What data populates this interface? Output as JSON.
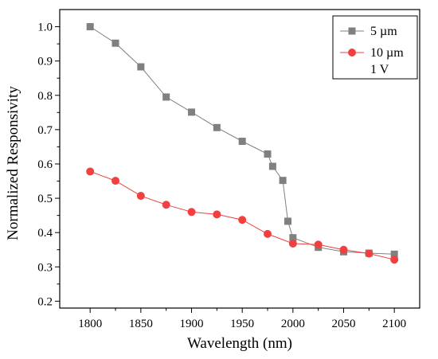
{
  "chart_data": {
    "type": "line",
    "xlabel": "Wavelength (nm)",
    "ylabel": "Normalized Responsivity",
    "xlim": [
      1770,
      2125
    ],
    "ylim": [
      0.18,
      1.05
    ],
    "xticks": [
      1800,
      1850,
      1900,
      1950,
      2000,
      2050,
      2100
    ],
    "yticks": [
      0.2,
      0.3,
      0.4,
      0.5,
      0.6,
      0.7,
      0.8,
      0.9,
      1.0
    ],
    "ytick_labels": [
      "0.2",
      "0.3",
      "0.4",
      "0.5",
      "0.6",
      "0.7",
      "0.8",
      "0.9",
      "1.0"
    ],
    "grid": false,
    "legend_position": "top-right",
    "legend_note": "1 V",
    "series": [
      {
        "name": "5 µm",
        "marker": "square",
        "color": "#808080",
        "x": [
          1800,
          1825,
          1850,
          1875,
          1900,
          1925,
          1950,
          1975,
          1980,
          1990,
          1995,
          2000,
          2025,
          2050,
          2075,
          2100
        ],
        "values": [
          1.0,
          0.952,
          0.883,
          0.795,
          0.751,
          0.706,
          0.666,
          0.629,
          0.593,
          0.552,
          0.433,
          0.385,
          0.357,
          0.344,
          0.34,
          0.337
        ]
      },
      {
        "name": "10 µm",
        "marker": "circle",
        "color": "#f04040",
        "x": [
          1800,
          1825,
          1850,
          1875,
          1900,
          1925,
          1950,
          1975,
          2000,
          2025,
          2050,
          2075,
          2100
        ],
        "values": [
          0.578,
          0.551,
          0.507,
          0.481,
          0.46,
          0.453,
          0.437,
          0.396,
          0.368,
          0.365,
          0.35,
          0.339,
          0.321
        ]
      }
    ]
  }
}
